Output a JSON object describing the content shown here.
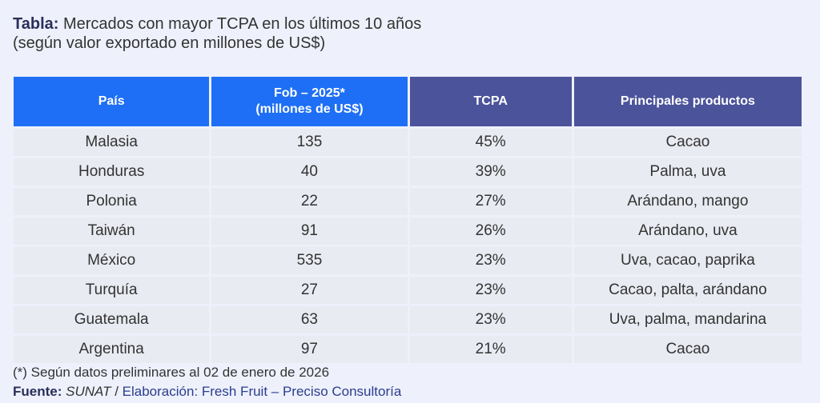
{
  "title": {
    "label": "Tabla:",
    "text": "Mercados con mayor TCPA en los últimos 10 años",
    "subtitle": "(según valor exportado en millones de US$)"
  },
  "table": {
    "headers": {
      "pais": "País",
      "fob_line1": "Fob – 2025*",
      "fob_line2": "(millones de US$)",
      "tcpa": "TCPA",
      "productos": "Principales productos"
    },
    "rows": [
      {
        "pais": "Malasia",
        "fob": "135",
        "tcpa": "45%",
        "productos": "Cacao"
      },
      {
        "pais": "Honduras",
        "fob": "40",
        "tcpa": "39%",
        "productos": "Palma, uva"
      },
      {
        "pais": "Polonia",
        "fob": "22",
        "tcpa": "27%",
        "productos": "Arándano, mango"
      },
      {
        "pais": "Taiwán",
        "fob": "91",
        "tcpa": "26%",
        "productos": "Arándano, uva"
      },
      {
        "pais": "México",
        "fob": "535",
        "tcpa": "23%",
        "productos": "Uva, cacao, paprika"
      },
      {
        "pais": "Turquía",
        "fob": "27",
        "tcpa": "23%",
        "productos": "Cacao, palta, arándano"
      },
      {
        "pais": "Guatemala",
        "fob": "63",
        "tcpa": "23%",
        "productos": "Uva, palma, mandarina"
      },
      {
        "pais": "Argentina",
        "fob": "97",
        "tcpa": "21%",
        "productos": "Cacao"
      }
    ]
  },
  "footnote": "(*) Según datos preliminares al 02 de enero de 2026",
  "source": {
    "label": "Fuente:",
    "name": "SUNAT",
    "separator": " / ",
    "elaboracion": "Elaboración: Fresh Fruit – Preciso Consultoría"
  },
  "colors": {
    "header_blue": "#1e6ff5",
    "header_indigo": "#4b539a",
    "row_bg": "#e9ebf2",
    "page_bg": "#eef1fb"
  }
}
